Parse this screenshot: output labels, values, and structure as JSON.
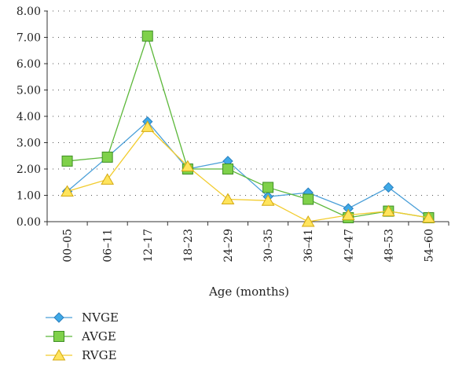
{
  "chart_data": {
    "type": "line",
    "title": "",
    "xlabel": "Age (months)",
    "ylabel": "",
    "categories": [
      "00–05",
      "06–11",
      "12–17",
      "18–23",
      "24–29",
      "30–35",
      "36–41",
      "42–47",
      "48–53",
      "54–60"
    ],
    "ylim": [
      0,
      8
    ],
    "yticks": [
      "0.00",
      "1.00",
      "2.00",
      "3.00",
      "4.00",
      "5.00",
      "6.00",
      "7.00",
      "8.00"
    ],
    "grid": "horizontal-dotted",
    "legend_position": "bottom-left",
    "series": [
      {
        "name": "NVGE",
        "marker": "diamond",
        "line_color": "#4a9fd8",
        "marker_color": "#3fa9e6",
        "values": [
          1.15,
          2.45,
          3.8,
          2.0,
          2.3,
          0.95,
          1.1,
          0.5,
          1.3,
          0.15
        ]
      },
      {
        "name": "AVGE",
        "marker": "square",
        "line_color": "#5cb83a",
        "marker_color": "#7fd14a",
        "values": [
          2.3,
          2.45,
          7.05,
          2.0,
          2.0,
          1.3,
          0.85,
          0.15,
          0.4,
          0.15
        ]
      },
      {
        "name": "RVGE",
        "marker": "triangle",
        "line_color": "#f2cc2e",
        "marker_color": "#ffe45c",
        "values": [
          1.15,
          1.6,
          3.6,
          2.1,
          0.85,
          0.8,
          0.0,
          0.25,
          0.4,
          0.15
        ]
      }
    ]
  }
}
